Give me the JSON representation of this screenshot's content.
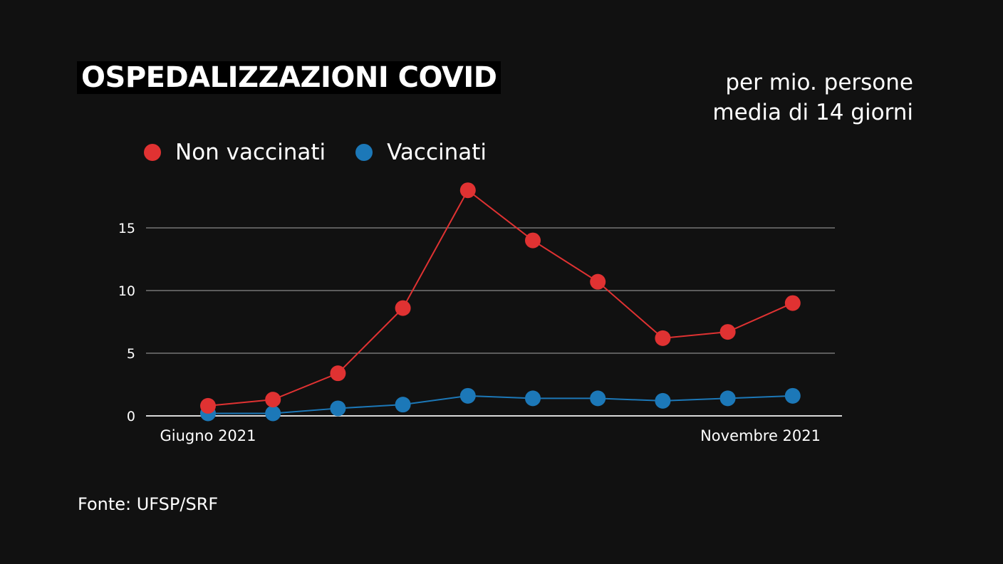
{
  "chart_data": {
    "type": "line",
    "title": "OSPEDALIZZAZIONI COVID",
    "subtitle": [
      "per mio. persone",
      "media di 14 giorni"
    ],
    "x_start_label": "Giugno 2021",
    "x_end_label": "Novembre 2021",
    "y_ticks": [
      0,
      5,
      10,
      15
    ],
    "ylim": [
      0,
      18
    ],
    "grid": true,
    "legend_position": "top-left",
    "series": [
      {
        "name": "Non vaccinati",
        "color": "#e03232",
        "values": [
          0.8,
          1.3,
          3.4,
          8.6,
          18.0,
          14.0,
          10.7,
          6.2,
          6.7,
          9.0
        ]
      },
      {
        "name": "Vaccinati",
        "color": "#1c78b8",
        "values": [
          0.2,
          0.2,
          0.6,
          0.9,
          1.6,
          1.4,
          1.4,
          1.2,
          1.4,
          1.6
        ]
      }
    ]
  },
  "source": "Fonte: UFSP/SRF"
}
